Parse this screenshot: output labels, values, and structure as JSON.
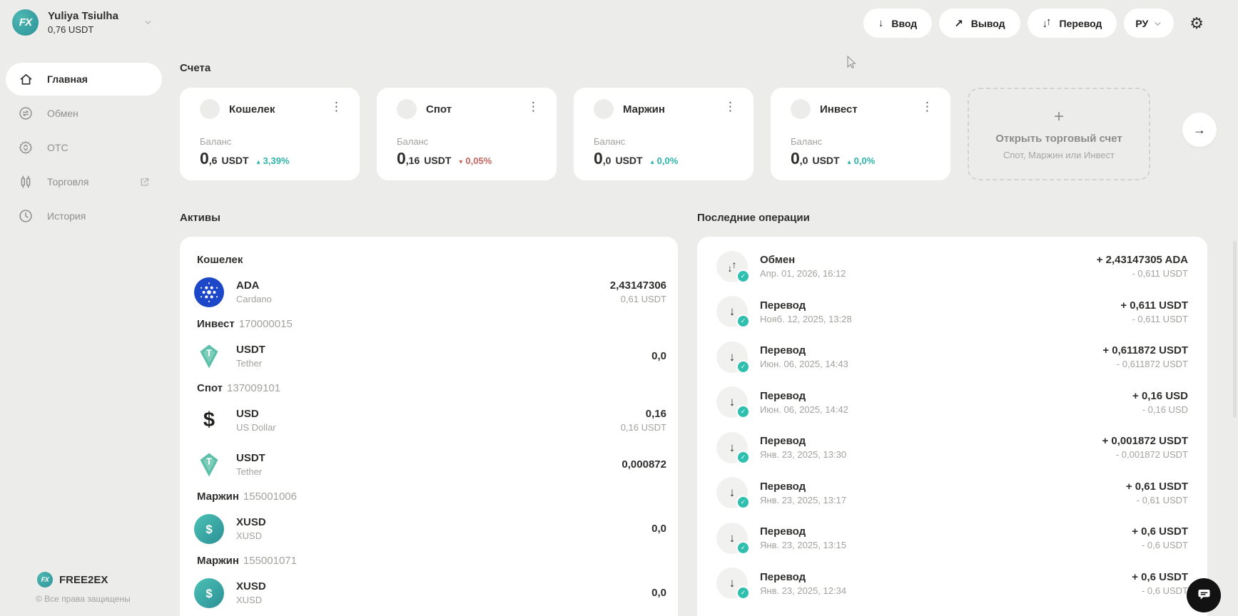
{
  "header": {
    "user": {
      "logo_icon": "fx-logo-icon",
      "name": "Yuliya Tsiulha",
      "balance": "0,76 USDT",
      "chevron_icon": "chevron-down-icon"
    },
    "actions": [
      {
        "id": "deposit",
        "icon": "arrow-down-icon",
        "label": "Ввод"
      },
      {
        "id": "withdraw",
        "icon": "arrow-up-right-icon",
        "label": "Вывод"
      },
      {
        "id": "transfer",
        "icon": "arrows-down-up-icon",
        "label": "Перевод"
      }
    ],
    "language": {
      "label": "РУ",
      "icon": "chevron-down-icon"
    },
    "settings_icon": "gear-icon"
  },
  "sidebar": {
    "items": [
      {
        "id": "home",
        "icon": "home-icon",
        "label": "Главная",
        "active": true
      },
      {
        "id": "exchange",
        "icon": "exchange-icon",
        "label": "Обмен",
        "active": false
      },
      {
        "id": "otc",
        "icon": "otc-icon",
        "label": "OTC",
        "active": false
      },
      {
        "id": "trading",
        "icon": "trading-icon",
        "label": "Торговля",
        "active": false,
        "external_icon": "external-link-icon"
      },
      {
        "id": "history",
        "icon": "history-icon",
        "label": "История",
        "active": false
      }
    ],
    "footer": {
      "logo_icon": "fx-logo-icon",
      "brand": "FREE2EX",
      "copyright": "© Все права защищены"
    }
  },
  "accounts": {
    "title": "Счета",
    "menu_icon": "kebab-menu-icon",
    "next_icon": "arrow-right-icon",
    "cards": [
      {
        "name": "Кошелек",
        "balance_label": "Баланс",
        "value_int": "0",
        "value_frac": ",6",
        "currency": "USDT",
        "change": "3,39%",
        "trend": "up"
      },
      {
        "name": "Спот",
        "balance_label": "Баланс",
        "value_int": "0",
        "value_frac": ",16",
        "currency": "USDT",
        "change": "0,05%",
        "trend": "down"
      },
      {
        "name": "Маржин",
        "balance_label": "Баланс",
        "value_int": "0",
        "value_frac": ",0",
        "currency": "USDT",
        "change": "0,0%",
        "trend": "up"
      },
      {
        "name": "Инвест",
        "balance_label": "Баланс",
        "value_int": "0",
        "value_frac": ",0",
        "currency": "USDT",
        "change": "0,0%",
        "trend": "up"
      }
    ],
    "open_card": {
      "plus": "+",
      "title": "Открыть торговый счет",
      "subtitle": "Спот, Маржин или Инвест"
    }
  },
  "assets": {
    "title": "Активы",
    "groups": [
      {
        "name": "Кошелек",
        "number": "",
        "rows": [
          {
            "icon": "ada-icon",
            "symbol": "ADA",
            "label": "Cardano",
            "amount": "2,43147306",
            "fiat": "0,61 USDT"
          }
        ]
      },
      {
        "name": "Инвест",
        "number": "170000015",
        "rows": [
          {
            "icon": "usdt-icon",
            "symbol": "USDT",
            "label": "Tether",
            "amount": "0,0",
            "fiat": ""
          }
        ]
      },
      {
        "name": "Спот",
        "number": "137009101",
        "rows": [
          {
            "icon": "usd-icon",
            "symbol": "USD",
            "label": "US Dollar",
            "amount": "0,16",
            "fiat": "0,16 USDT"
          },
          {
            "icon": "usdt-icon",
            "symbol": "USDT",
            "label": "Tether",
            "amount": "0,000872",
            "fiat": ""
          }
        ]
      },
      {
        "name": "Маржин",
        "number": "155001006",
        "rows": [
          {
            "icon": "xusd-icon",
            "symbol": "XUSD",
            "label": "XUSD",
            "amount": "0,0",
            "fiat": ""
          }
        ]
      },
      {
        "name": "Маржин",
        "number": "155001071",
        "rows": [
          {
            "icon": "xusd-icon",
            "symbol": "XUSD",
            "label": "XUSD",
            "amount": "0,0",
            "fiat": ""
          }
        ]
      }
    ]
  },
  "operations": {
    "title": "Последние операции",
    "status_icon": "check-icon",
    "items": [
      {
        "icon": "swap-icon",
        "type": "Обмен",
        "date": "Апр. 01, 2026, 16:12",
        "credit": "+ 2,43147305 ADA",
        "debit": "- 0,611 USDT"
      },
      {
        "icon": "transfer-icon",
        "type": "Перевод",
        "date": "Нояб. 12, 2025, 13:28",
        "credit": "+ 0,611 USDT",
        "debit": "- 0,611 USDT"
      },
      {
        "icon": "transfer-icon",
        "type": "Перевод",
        "date": "Июн. 06, 2025, 14:43",
        "credit": "+ 0,611872 USDT",
        "debit": "- 0,611872 USDT"
      },
      {
        "icon": "transfer-icon",
        "type": "Перевод",
        "date": "Июн. 06, 2025, 14:42",
        "credit": "+ 0,16 USD",
        "debit": "- 0,16 USD"
      },
      {
        "icon": "transfer-icon",
        "type": "Перевод",
        "date": "Янв. 23, 2025, 13:30",
        "credit": "+ 0,001872 USDT",
        "debit": "- 0,001872 USDT"
      },
      {
        "icon": "transfer-icon",
        "type": "Перевод",
        "date": "Янв. 23, 2025, 13:17",
        "credit": "+ 0,61 USDT",
        "debit": "- 0,61 USDT"
      },
      {
        "icon": "transfer-icon",
        "type": "Перевод",
        "date": "Янв. 23, 2025, 13:15",
        "credit": "+ 0,6 USDT",
        "debit": "- 0,6 USDT"
      },
      {
        "icon": "transfer-icon",
        "type": "Перевод",
        "date": "Янв. 23, 2025, 12:34",
        "credit": "+ 0,6 USDT",
        "debit": "- 0,6 USDT"
      }
    ]
  },
  "misc": {
    "chat_icon": "chat-icon"
  },
  "colors": {
    "background": "#ECECEA",
    "card": "#FFFFFF",
    "text_dark": "#2E2E2C",
    "text_gray": "#A2A29E",
    "accent_teal": "#2FB3A9",
    "down_red": "#C4655F",
    "badge_teal": "#2FBFAE",
    "ada_blue": "#1B47C8",
    "usdt_teal": "#5BBFAA",
    "xusd_teal": "#3AA8A4"
  }
}
